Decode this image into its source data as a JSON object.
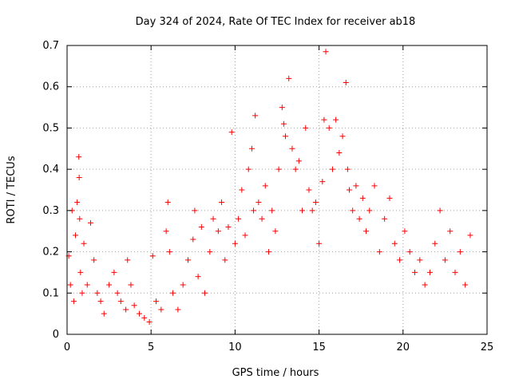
{
  "chart_data": {
    "type": "scatter",
    "title": "Day 324 of 2024, Rate Of TEC Index for receiver ab18",
    "xlabel": "GPS time / hours",
    "ylabel": "ROTI / TECUs",
    "xlim": [
      0,
      25
    ],
    "ylim": [
      0,
      0.7
    ],
    "xticks": [
      0,
      5,
      10,
      15,
      20,
      25
    ],
    "yticks": [
      0,
      0.1,
      0.2,
      0.3,
      0.4,
      0.5,
      0.6,
      0.7
    ],
    "grid": true,
    "marker": "+",
    "color": "#ff0000",
    "series": [
      {
        "x": [
          0.1,
          0.2,
          0.3,
          0.4,
          0.5,
          0.6,
          0.7,
          0.72,
          0.75,
          0.8,
          0.9,
          1.0,
          1.2,
          1.4,
          1.6,
          1.8,
          2.0,
          2.2,
          2.5,
          2.8,
          3.0,
          3.2,
          3.5,
          3.6,
          3.8,
          4.0,
          4.3,
          4.6,
          4.9,
          5.1,
          5.3,
          5.6,
          5.9,
          6.0,
          6.1,
          6.3,
          6.6,
          6.9,
          7.2,
          7.5,
          7.6,
          7.8,
          8.0,
          8.2,
          8.5,
          8.7,
          9.0,
          9.2,
          9.4,
          9.6,
          9.8,
          10.0,
          10.2,
          10.4,
          10.6,
          10.8,
          11.0,
          11.1,
          11.2,
          11.4,
          11.6,
          11.8,
          12.0,
          12.2,
          12.4,
          12.6,
          12.8,
          12.9,
          13.0,
          13.2,
          13.4,
          13.6,
          13.8,
          14.0,
          14.2,
          14.4,
          14.6,
          14.8,
          15.0,
          15.2,
          15.3,
          15.4,
          15.6,
          15.8,
          16.0,
          16.2,
          16.4,
          16.6,
          16.7,
          16.8,
          17.0,
          17.2,
          17.4,
          17.6,
          17.8,
          18.0,
          18.3,
          18.6,
          18.9,
          19.2,
          19.5,
          19.8,
          20.1,
          20.4,
          20.7,
          21.0,
          21.3,
          21.6,
          21.9,
          22.2,
          22.5,
          22.8,
          23.1,
          23.4,
          23.7,
          24.0
        ],
        "y": [
          0.19,
          0.12,
          0.3,
          0.08,
          0.24,
          0.32,
          0.43,
          0.38,
          0.28,
          0.15,
          0.1,
          0.22,
          0.12,
          0.27,
          0.18,
          0.1,
          0.08,
          0.05,
          0.12,
          0.15,
          0.1,
          0.08,
          0.06,
          0.18,
          0.12,
          0.07,
          0.05,
          0.04,
          0.03,
          0.19,
          0.08,
          0.06,
          0.25,
          0.32,
          0.2,
          0.1,
          0.06,
          0.12,
          0.18,
          0.23,
          0.3,
          0.14,
          0.26,
          0.1,
          0.2,
          0.28,
          0.25,
          0.32,
          0.18,
          0.26,
          0.49,
          0.22,
          0.28,
          0.35,
          0.24,
          0.4,
          0.45,
          0.3,
          0.53,
          0.32,
          0.28,
          0.36,
          0.2,
          0.3,
          0.25,
          0.4,
          0.55,
          0.51,
          0.48,
          0.62,
          0.45,
          0.4,
          0.42,
          0.3,
          0.5,
          0.35,
          0.3,
          0.32,
          0.22,
          0.37,
          0.52,
          0.685,
          0.5,
          0.4,
          0.52,
          0.44,
          0.48,
          0.61,
          0.4,
          0.35,
          0.3,
          0.36,
          0.28,
          0.33,
          0.25,
          0.3,
          0.36,
          0.2,
          0.28,
          0.33,
          0.22,
          0.18,
          0.25,
          0.2,
          0.15,
          0.18,
          0.12,
          0.15,
          0.22,
          0.3,
          0.18,
          0.25,
          0.15,
          0.2,
          0.12,
          0.24
        ]
      }
    ]
  }
}
